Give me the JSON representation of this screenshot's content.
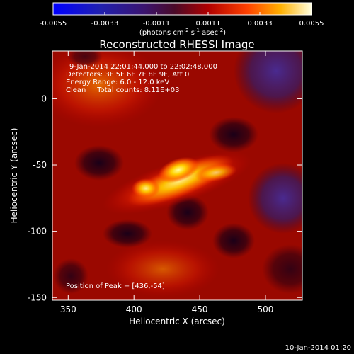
{
  "chart_data": {
    "type": "heatmap",
    "title": "Reconstructed RHESSI Image",
    "xlabel": "Heliocentric X (arcsec)",
    "ylabel": "Heliocentric Y (arcsec)",
    "xlim": [
      338,
      528
    ],
    "ylim": [
      -152,
      36
    ],
    "xticks": [
      350,
      400,
      450,
      500
    ],
    "yticks": [
      0,
      -50,
      -100,
      -150
    ],
    "colorbar": {
      "range": [
        -0.0055,
        0.0055
      ],
      "ticks": [
        "-0.0055",
        "-0.0033",
        "-0.0011",
        "0.0011",
        "0.0033",
        "0.0055"
      ],
      "unit_base": "(photons cm",
      "unit_exp1": "-2",
      "unit_mid": " s",
      "unit_exp2": "-1",
      "unit_mid2": " asec",
      "unit_exp3": "-2",
      "unit_end": ")"
    },
    "annotations": [
      "9-Jan-2014 22:01:44.000 to 22:02:48.000",
      "Detectors: 3F 5F 6F 7F 8F 9F, Att 0",
      "Energy Range: 6.0 - 12.0 keV",
      "Clean     Total counts: 8.11E+03"
    ],
    "peak_label": "Position of Peak = [436,-54]",
    "peak": [
      436,
      -54
    ],
    "timestamp": "10-Jan-2014 01:20"
  }
}
